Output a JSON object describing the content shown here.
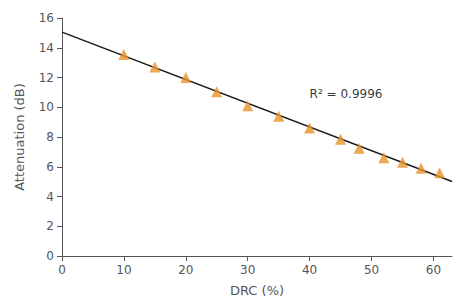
{
  "chart_data": {
    "type": "scatter",
    "x": [
      10,
      15,
      20,
      25,
      30,
      35,
      40,
      45,
      48,
      52,
      55,
      58,
      61
    ],
    "values": [
      13.55,
      12.7,
      12.0,
      11.05,
      10.1,
      9.4,
      8.6,
      7.85,
      7.25,
      6.6,
      6.3,
      5.9,
      5.6
    ],
    "color": "#E8922A",
    "marker": "triangle",
    "trendline": {
      "type": "line",
      "x": [
        0,
        63
      ],
      "values": [
        15.0485,
        5.008
      ],
      "color": "#1a1a1a"
    },
    "xlabel": "DRC (%)",
    "ylabel": "Attenuation (dB)",
    "xlim": [
      0,
      63
    ],
    "ylim": [
      0,
      16
    ],
    "xticks": [
      0,
      10,
      20,
      30,
      40,
      50,
      60
    ],
    "yticks": [
      0,
      2,
      4,
      6,
      8,
      10,
      12,
      14,
      16
    ],
    "annotations": [
      {
        "text": "R² = 0.9996",
        "x": 40,
        "y": 10.5
      }
    ],
    "grid": false
  }
}
